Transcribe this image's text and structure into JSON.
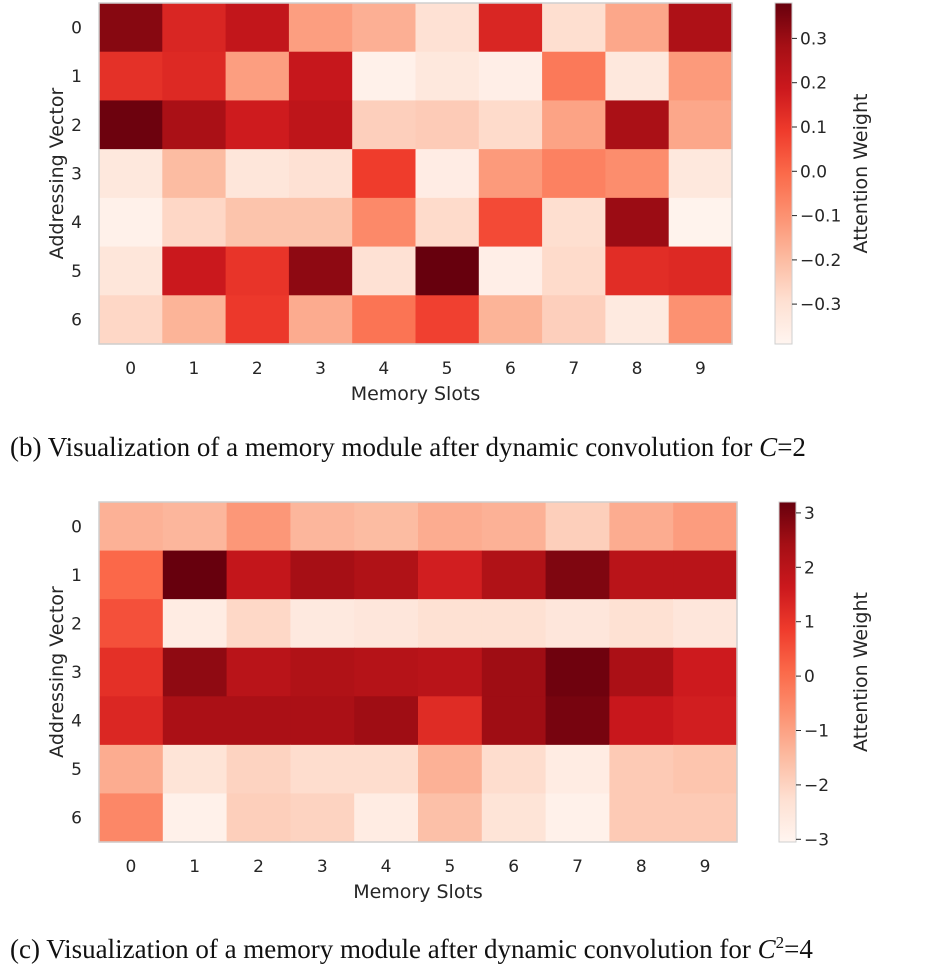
{
  "chart_data": [
    {
      "type": "heatmap",
      "xlabel": "Memory Slots",
      "ylabel": "Addressing Vector",
      "x_ticks": [
        "0",
        "1",
        "2",
        "3",
        "4",
        "5",
        "6",
        "7",
        "8",
        "9"
      ],
      "y_ticks": [
        "0",
        "1",
        "2",
        "3",
        "4",
        "5",
        "6"
      ],
      "colorbar_label": "Attention Weight",
      "colorbar_ticks": [
        "0.3",
        "0.2",
        "0.1",
        "0.0",
        "−0.1",
        "−0.2",
        "−0.3"
      ],
      "colorbar_tick_values": [
        0.3,
        0.2,
        0.1,
        0.0,
        -0.1,
        -0.2,
        -0.3
      ],
      "vmin": -0.39,
      "vmax": 0.38,
      "colormap": "Reds",
      "values": [
        [
          0.33,
          0.15,
          0.21,
          -0.13,
          -0.17,
          -0.3,
          0.15,
          -0.29,
          -0.15,
          0.26
        ],
        [
          0.12,
          0.14,
          -0.13,
          0.2,
          -0.37,
          -0.33,
          -0.36,
          -0.04,
          -0.33,
          -0.12
        ],
        [
          0.37,
          0.27,
          0.18,
          0.22,
          -0.25,
          -0.24,
          -0.28,
          -0.14,
          0.27,
          -0.15
        ],
        [
          -0.33,
          -0.2,
          -0.32,
          -0.3,
          0.09,
          -0.35,
          -0.12,
          -0.06,
          -0.09,
          -0.33
        ],
        [
          -0.37,
          -0.27,
          -0.22,
          -0.22,
          -0.08,
          -0.28,
          0.06,
          -0.29,
          0.3,
          -0.38
        ],
        [
          -0.32,
          0.19,
          0.11,
          0.32,
          -0.3,
          0.38,
          -0.36,
          -0.28,
          0.13,
          0.14
        ],
        [
          -0.27,
          -0.18,
          0.1,
          -0.16,
          -0.03,
          0.08,
          -0.18,
          -0.25,
          -0.34,
          -0.1
        ]
      ]
    },
    {
      "type": "heatmap",
      "xlabel": "Memory Slots",
      "ylabel": "Addressing Vector",
      "x_ticks": [
        "0",
        "1",
        "2",
        "3",
        "4",
        "5",
        "6",
        "7",
        "8",
        "9"
      ],
      "y_ticks": [
        "0",
        "1",
        "2",
        "3",
        "4",
        "5",
        "6"
      ],
      "colorbar_label": "Attention Weight",
      "colorbar_ticks": [
        "3",
        "2",
        "1",
        "0",
        "−1",
        "−2",
        "−3"
      ],
      "colorbar_tick_values": [
        3,
        2,
        1,
        0,
        -1,
        -2,
        -3
      ],
      "vmin": -3.05,
      "vmax": 3.2,
      "colormap": "Reds",
      "values": [
        [
          -1.3,
          -1.4,
          -0.8,
          -1.4,
          -1.5,
          -1.2,
          -1.3,
          -1.9,
          -1.2,
          -0.9
        ],
        [
          0.1,
          3.2,
          1.8,
          2.4,
          2.2,
          1.5,
          2.2,
          2.9,
          2.0,
          2.0
        ],
        [
          0.5,
          -2.7,
          -2.1,
          -2.6,
          -2.5,
          -2.3,
          -2.3,
          -2.5,
          -2.3,
          -2.5
        ],
        [
          1.1,
          2.7,
          2.0,
          2.2,
          2.1,
          2.0,
          2.5,
          3.1,
          2.3,
          1.6
        ],
        [
          1.3,
          2.3,
          2.3,
          2.3,
          2.5,
          1.2,
          2.5,
          3.0,
          1.7,
          1.5
        ],
        [
          -1.2,
          -2.4,
          -2.0,
          -2.2,
          -2.2,
          -1.3,
          -2.2,
          -2.7,
          -1.8,
          -1.7
        ],
        [
          -0.5,
          -2.9,
          -1.9,
          -2.0,
          -2.7,
          -1.6,
          -2.4,
          -2.9,
          -1.8,
          -1.8
        ]
      ]
    }
  ],
  "captions": {
    "b": {
      "prefix": "(b)  Visualization of a memory module after dynamic convolution for  ",
      "math": "C",
      "suffix": "=2"
    },
    "c": {
      "prefix": "(c)  Visualization of a memory module after dynamic convolution for  ",
      "math": "C",
      "sup": "2",
      "suffix": "=4"
    }
  }
}
